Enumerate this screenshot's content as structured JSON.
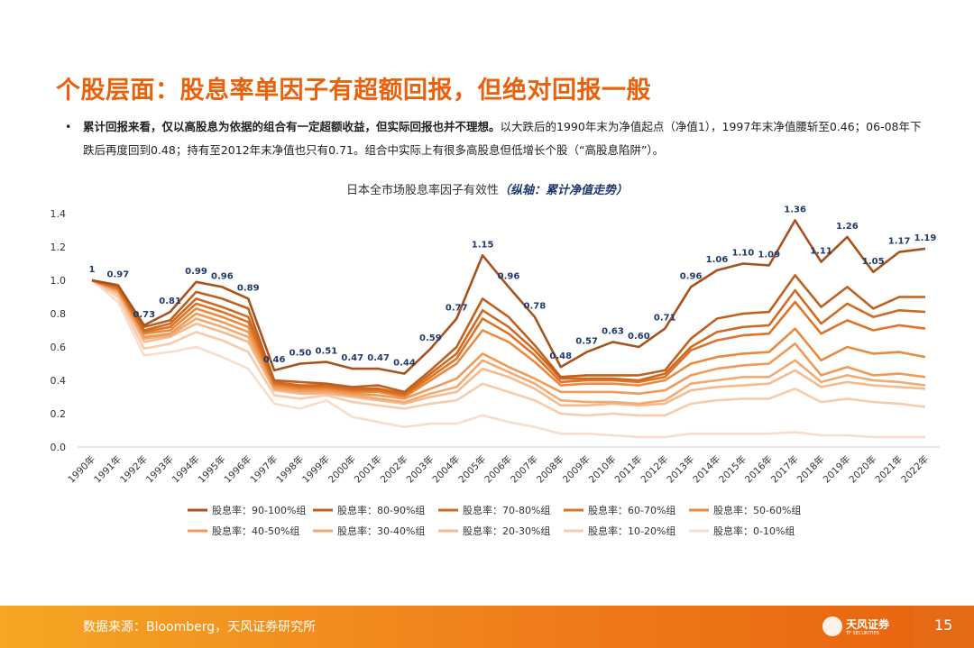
{
  "page": {
    "title": "个股层面：股息率单因子有超额回报，但绝对回报一般",
    "bullet_bold": "累计回报来看，仅以高股息为依据的组合有一定超额收益，但实际回报也并不理想。",
    "bullet_rest": "以大跌后的1990年末为净值起点（净值1），1997年末净值腰斩至0.46；06-08年下跌后再度回到0.48；持有至2012年末净值也只有0.71。组合中实际上有很多高股息但低增长个股（“高股息陷阱”）。",
    "chart_title_main": "日本全市场股息率因子有效性",
    "chart_title_sub": "（纵轴：累计净值走势）",
    "footer_source": "数据来源：Bloomberg，天风证券研究所",
    "logo_text": "天风证券",
    "logo_sub": "TF SECURITIES",
    "page_number": "15"
  },
  "chart_data": {
    "type": "line",
    "title": "日本全市场股息率因子有效性（纵轴：累计净值走势）",
    "x": [
      "1990年",
      "1991年",
      "1992年",
      "1993年",
      "1994年",
      "1995年",
      "1996年",
      "1997年",
      "1998年",
      "1999年",
      "2000年",
      "2001年",
      "2002年",
      "2003年",
      "2004年",
      "2005年",
      "2006年",
      "2007年",
      "2008年",
      "2009年",
      "2010年",
      "2011年",
      "2012年",
      "2013年",
      "2014年",
      "2015年",
      "2016年",
      "2017年",
      "2018年",
      "2019年",
      "2020年",
      "2021年",
      "2022年"
    ],
    "ylim": [
      0,
      1.4
    ],
    "yticks": [
      "0.0",
      "0.2",
      "0.4",
      "0.6",
      "0.8",
      "1.0",
      "1.2",
      "1.4"
    ],
    "grid": false,
    "legend_position": "bottom",
    "series": [
      {
        "name": "股息率：90-100%组",
        "color": "#a8521c",
        "values": [
          1,
          0.97,
          0.73,
          0.81,
          0.99,
          0.96,
          0.89,
          0.46,
          0.5,
          0.51,
          0.47,
          0.47,
          0.44,
          0.59,
          0.77,
          1.15,
          0.96,
          0.78,
          0.48,
          0.57,
          0.63,
          0.6,
          0.71,
          0.96,
          1.06,
          1.1,
          1.09,
          1.36,
          1.11,
          1.26,
          1.05,
          1.17,
          1.19
        ],
        "labels": [
          "1",
          "0.97",
          "0.73",
          "0.81",
          "0.99",
          "0.96",
          "0.89",
          "0.46",
          "0.50",
          "0.51",
          "0.47",
          "0.47",
          "0.44",
          "0.59",
          "0.77",
          "1.15",
          "0.96",
          "0.78",
          "0.48",
          "0.57",
          "0.63",
          "0.60",
          "0.71",
          "0.96",
          "1.06",
          "1.10",
          "1.09",
          "1.36",
          "1.11",
          "1.26",
          "1.05",
          "1.17",
          "1.19"
        ]
      },
      {
        "name": "股息率：80-90%组",
        "color": "#c0601f",
        "values": [
          1,
          0.97,
          0.72,
          0.76,
          0.93,
          0.89,
          0.83,
          0.4,
          0.39,
          0.38,
          0.36,
          0.37,
          0.33,
          0.46,
          0.6,
          0.89,
          0.78,
          0.61,
          0.42,
          0.43,
          0.43,
          0.43,
          0.46,
          0.65,
          0.77,
          0.8,
          0.81,
          1.03,
          0.84,
          0.96,
          0.83,
          0.9,
          0.9
        ]
      },
      {
        "name": "股息率：70-80%组",
        "color": "#d06a22",
        "values": [
          1,
          0.96,
          0.7,
          0.74,
          0.89,
          0.84,
          0.78,
          0.39,
          0.37,
          0.37,
          0.35,
          0.35,
          0.32,
          0.44,
          0.56,
          0.82,
          0.72,
          0.58,
          0.41,
          0.41,
          0.41,
          0.4,
          0.44,
          0.6,
          0.69,
          0.72,
          0.73,
          0.94,
          0.74,
          0.86,
          0.78,
          0.82,
          0.81
        ]
      },
      {
        "name": "股息率：60-70%组",
        "color": "#de7428",
        "values": [
          1,
          0.95,
          0.69,
          0.72,
          0.86,
          0.81,
          0.75,
          0.38,
          0.36,
          0.36,
          0.34,
          0.34,
          0.31,
          0.42,
          0.53,
          0.77,
          0.68,
          0.55,
          0.39,
          0.4,
          0.4,
          0.39,
          0.42,
          0.58,
          0.64,
          0.67,
          0.68,
          0.87,
          0.68,
          0.76,
          0.7,
          0.73,
          0.71
        ]
      },
      {
        "name": "股息率：50-60%组",
        "color": "#ea8a3e",
        "values": [
          1,
          0.95,
          0.68,
          0.7,
          0.83,
          0.78,
          0.72,
          0.37,
          0.35,
          0.35,
          0.33,
          0.33,
          0.3,
          0.4,
          0.5,
          0.7,
          0.63,
          0.51,
          0.37,
          0.38,
          0.38,
          0.37,
          0.4,
          0.5,
          0.54,
          0.56,
          0.57,
          0.71,
          0.52,
          0.6,
          0.56,
          0.57,
          0.54
        ]
      },
      {
        "name": "股息率：40-50%组",
        "color": "#ef9a58",
        "values": [
          1,
          0.94,
          0.66,
          0.68,
          0.8,
          0.75,
          0.69,
          0.36,
          0.34,
          0.34,
          0.32,
          0.31,
          0.29,
          0.35,
          0.41,
          0.56,
          0.48,
          0.41,
          0.33,
          0.33,
          0.33,
          0.32,
          0.34,
          0.43,
          0.47,
          0.49,
          0.5,
          0.62,
          0.43,
          0.48,
          0.43,
          0.44,
          0.42
        ]
      },
      {
        "name": "股息率：30-40%组",
        "color": "#f2aa72",
        "values": [
          1,
          0.93,
          0.65,
          0.67,
          0.77,
          0.72,
          0.66,
          0.35,
          0.33,
          0.33,
          0.31,
          0.29,
          0.27,
          0.32,
          0.36,
          0.52,
          0.45,
          0.38,
          0.28,
          0.27,
          0.27,
          0.26,
          0.28,
          0.38,
          0.4,
          0.42,
          0.42,
          0.52,
          0.39,
          0.43,
          0.4,
          0.39,
          0.37
        ]
      },
      {
        "name": "股息率：20-30%组",
        "color": "#f5bb8e",
        "values": [
          1,
          0.92,
          0.63,
          0.66,
          0.74,
          0.69,
          0.63,
          0.34,
          0.32,
          0.32,
          0.3,
          0.28,
          0.26,
          0.3,
          0.33,
          0.47,
          0.42,
          0.35,
          0.25,
          0.25,
          0.26,
          0.25,
          0.26,
          0.34,
          0.36,
          0.37,
          0.38,
          0.46,
          0.36,
          0.39,
          0.37,
          0.36,
          0.35
        ]
      },
      {
        "name": "股息率：10-20%组",
        "color": "#f7ccac",
        "values": [
          1,
          0.9,
          0.59,
          0.62,
          0.69,
          0.64,
          0.57,
          0.31,
          0.29,
          0.31,
          0.27,
          0.25,
          0.23,
          0.26,
          0.28,
          0.38,
          0.33,
          0.28,
          0.2,
          0.19,
          0.2,
          0.19,
          0.19,
          0.26,
          0.28,
          0.29,
          0.29,
          0.35,
          0.27,
          0.29,
          0.27,
          0.26,
          0.24
        ]
      },
      {
        "name": "股息率：0-10%组",
        "color": "#fadccb",
        "values": [
          1,
          0.87,
          0.55,
          0.57,
          0.6,
          0.54,
          0.47,
          0.26,
          0.23,
          0.28,
          0.18,
          0.15,
          0.12,
          0.14,
          0.14,
          0.19,
          0.15,
          0.12,
          0.08,
          0.08,
          0.07,
          0.06,
          0.06,
          0.08,
          0.08,
          0.08,
          0.08,
          0.09,
          0.07,
          0.07,
          0.06,
          0.06,
          0.06
        ]
      }
    ]
  }
}
